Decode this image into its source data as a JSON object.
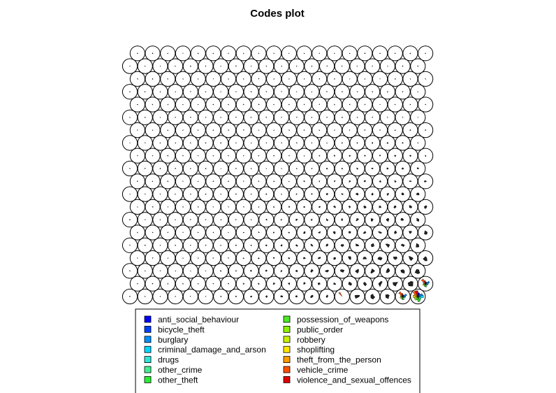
{
  "chart_data": {
    "type": "other",
    "chart_kind": "Self-organizing map codes plot (segment star glyphs per node)",
    "title": "Codes plot",
    "grid": {
      "shape": "hexagonal",
      "xdim": 20,
      "ydim": 20
    },
    "node_appearance": "open black circles; tiny segment glyphs in most nodes, growing toward the lower-right corner",
    "highlighted_nodes": [
      {
        "col": 19,
        "row": 0,
        "glyph": "full multicolored segment star"
      },
      {
        "col": 18,
        "row": 0,
        "glyph": "large multicolored segment star"
      },
      {
        "col": 19,
        "row": 1,
        "glyph": "large multicolored segment star"
      },
      {
        "col": 14,
        "row": 0,
        "glyph": "small orange/red wedge"
      }
    ],
    "segment_fractions_largest_node": [
      0.55,
      0.45,
      0.7,
      0.8,
      0.5,
      0.6,
      0.75,
      0.5,
      0.6,
      0.55,
      0.7,
      0.6,
      0.9,
      0.85
    ],
    "legend": {
      "placement": "bottom",
      "columns": 2,
      "items": [
        {
          "label": "anti_social_behaviour",
          "color": "#0000FF"
        },
        {
          "label": "bicycle_theft",
          "color": "#0041FF"
        },
        {
          "label": "burglary",
          "color": "#0090FF"
        },
        {
          "label": "criminal_damage_and_arson",
          "color": "#00D6FF"
        },
        {
          "label": "drugs",
          "color": "#2CE7D9"
        },
        {
          "label": "other_crime",
          "color": "#40F08F"
        },
        {
          "label": "other_theft",
          "color": "#26F034"
        },
        {
          "label": "possession_of_weapons",
          "color": "#4EE926"
        },
        {
          "label": "public_order",
          "color": "#8DF000"
        },
        {
          "label": "robbery",
          "color": "#C8F000"
        },
        {
          "label": "shoplifting",
          "color": "#FFE600"
        },
        {
          "label": "theft_from_the_person",
          "color": "#FF9A00"
        },
        {
          "label": "vehicle_crime",
          "color": "#FF5000"
        },
        {
          "label": "violence_and_sexual_offences",
          "color": "#E00000"
        }
      ]
    }
  }
}
